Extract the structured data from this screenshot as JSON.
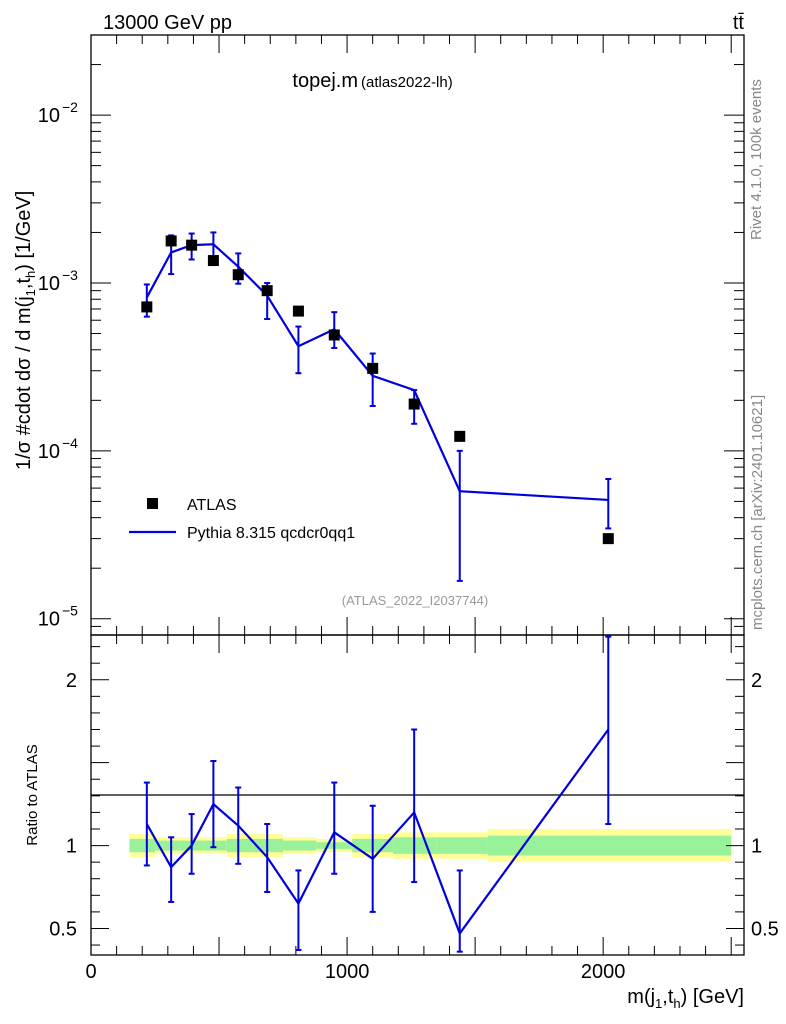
{
  "header": {
    "energy_label": "13000 GeV pp",
    "process_label": "tt̄"
  },
  "side_labels": {
    "rivet": "Rivet 4.1.0,  100k events",
    "mcplots": "mcplots.cern.ch [arXiv:2401.10621]"
  },
  "chart_data": [
    {
      "type": "scatter",
      "title": "topej.m",
      "subtitle": "(atlas2022-lh)",
      "analysis_label": "(ATLAS_2022_I2037744)",
      "ylabel": "1/σ #cdot dσ / d m(j",
      "ylabel_sub1": "1",
      "ylabel_mid": ",t",
      "ylabel_sub2": "h",
      "ylabel_end": ") [1/GeV]",
      "yscale": "log",
      "ylim": [
        8e-06,
        0.03
      ],
      "xlim": [
        0,
        2550
      ],
      "y_ticks": [
        {
          "value": 0.01,
          "base": "10",
          "exp": "−2"
        },
        {
          "value": 0.001,
          "base": "10",
          "exp": "−3"
        },
        {
          "value": 0.0001,
          "base": "10",
          "exp": "−4"
        },
        {
          "value": 1e-05,
          "base": "10",
          "exp": "−5"
        }
      ],
      "legend": [
        {
          "label": "ATLAS",
          "marker": "square",
          "color": "#000000"
        },
        {
          "label": "Pythia 8.315 qcdcr0qq1",
          "marker": "line",
          "color": "#0000dd"
        }
      ],
      "bin_edges": [
        150,
        250,
        350,
        440,
        530,
        630,
        750,
        880,
        1020,
        1180,
        1350,
        1550,
        2500
      ],
      "x": [
        218,
        313,
        393,
        478,
        575,
        688,
        810,
        950,
        1100,
        1262,
        1440,
        2020
      ],
      "series": [
        {
          "name": "ATLAS",
          "values": [
            0.00072,
            0.00178,
            0.00168,
            0.00136,
            0.00112,
            0.0009,
            0.00068,
            0.00049,
            0.00031,
            0.00019,
            0.000122,
            3e-05
          ]
        },
        {
          "name": "Pythia 8.315 qcdcr0qq1",
          "values": [
            0.00082,
            0.00152,
            0.00168,
            0.0017,
            0.00125,
            0.00084,
            0.00042,
            0.00053,
            0.00028,
            0.00023,
            5.75e-05,
            5.1e-05
          ],
          "err_lo": [
            0.00063,
            0.00113,
            0.00138,
            0.00138,
            0.00099,
            0.00061,
            0.00029,
            0.00041,
            0.000185,
            0.000145,
            1.68e-05,
            3.45e-05
          ],
          "err_hi": [
            0.00098,
            0.00192,
            0.00197,
            0.002,
            0.0015,
            0.001,
            0.00055,
            0.00067,
            0.00038,
            0.00023,
            0.0001,
            6.8e-05
          ]
        }
      ]
    },
    {
      "type": "line",
      "ylabel": "Ratio to ATLAS",
      "xlabel": "m(j",
      "xlabel_sub1": "1",
      "xlabel_mid": ",t",
      "xlabel_sub2": "h",
      "xlabel_end": ") [GeV]",
      "ylim": [
        0.34,
        2.27
      ],
      "xlim": [
        0,
        2550
      ],
      "y_ticks": [
        {
          "value": 0.5,
          "label": "0.5"
        },
        {
          "value": 1,
          "label": "1"
        },
        {
          "value": 2,
          "label": "2"
        }
      ],
      "x_ticks": [
        {
          "value": 0,
          "label": "0"
        },
        {
          "value": 1000,
          "label": "1000"
        },
        {
          "value": 2000,
          "label": "2000"
        }
      ],
      "band_yellow": {
        "lo": [
          0.93,
          0.95,
          0.95,
          0.95,
          0.93,
          0.93,
          0.95,
          0.96,
          0.93,
          0.92,
          0.92,
          0.9
        ],
        "hi": [
          1.07,
          1.05,
          1.05,
          1.05,
          1.07,
          1.07,
          1.05,
          1.04,
          1.07,
          1.08,
          1.08,
          1.1
        ]
      },
      "band_green": {
        "lo": [
          0.96,
          0.97,
          0.97,
          0.97,
          0.96,
          0.96,
          0.97,
          0.98,
          0.96,
          0.95,
          0.95,
          0.94
        ],
        "hi": [
          1.04,
          1.03,
          1.03,
          1.03,
          1.04,
          1.04,
          1.03,
          1.02,
          1.04,
          1.05,
          1.05,
          1.06
        ]
      },
      "ratio": {
        "name": "Pythia 8.315 qcdcr0qq1",
        "values": [
          1.13,
          0.87,
          1.0,
          1.25,
          1.12,
          0.93,
          0.65,
          1.08,
          0.92,
          1.2,
          0.47,
          1.7
        ],
        "err_lo": [
          0.88,
          0.66,
          0.83,
          0.99,
          0.89,
          0.72,
          0.37,
          0.83,
          0.6,
          0.78,
          0.36,
          1.13
        ],
        "err_hi": [
          1.38,
          1.05,
          1.19,
          1.51,
          1.35,
          1.13,
          0.85,
          1.38,
          1.24,
          1.7,
          0.85,
          2.26
        ]
      }
    }
  ]
}
